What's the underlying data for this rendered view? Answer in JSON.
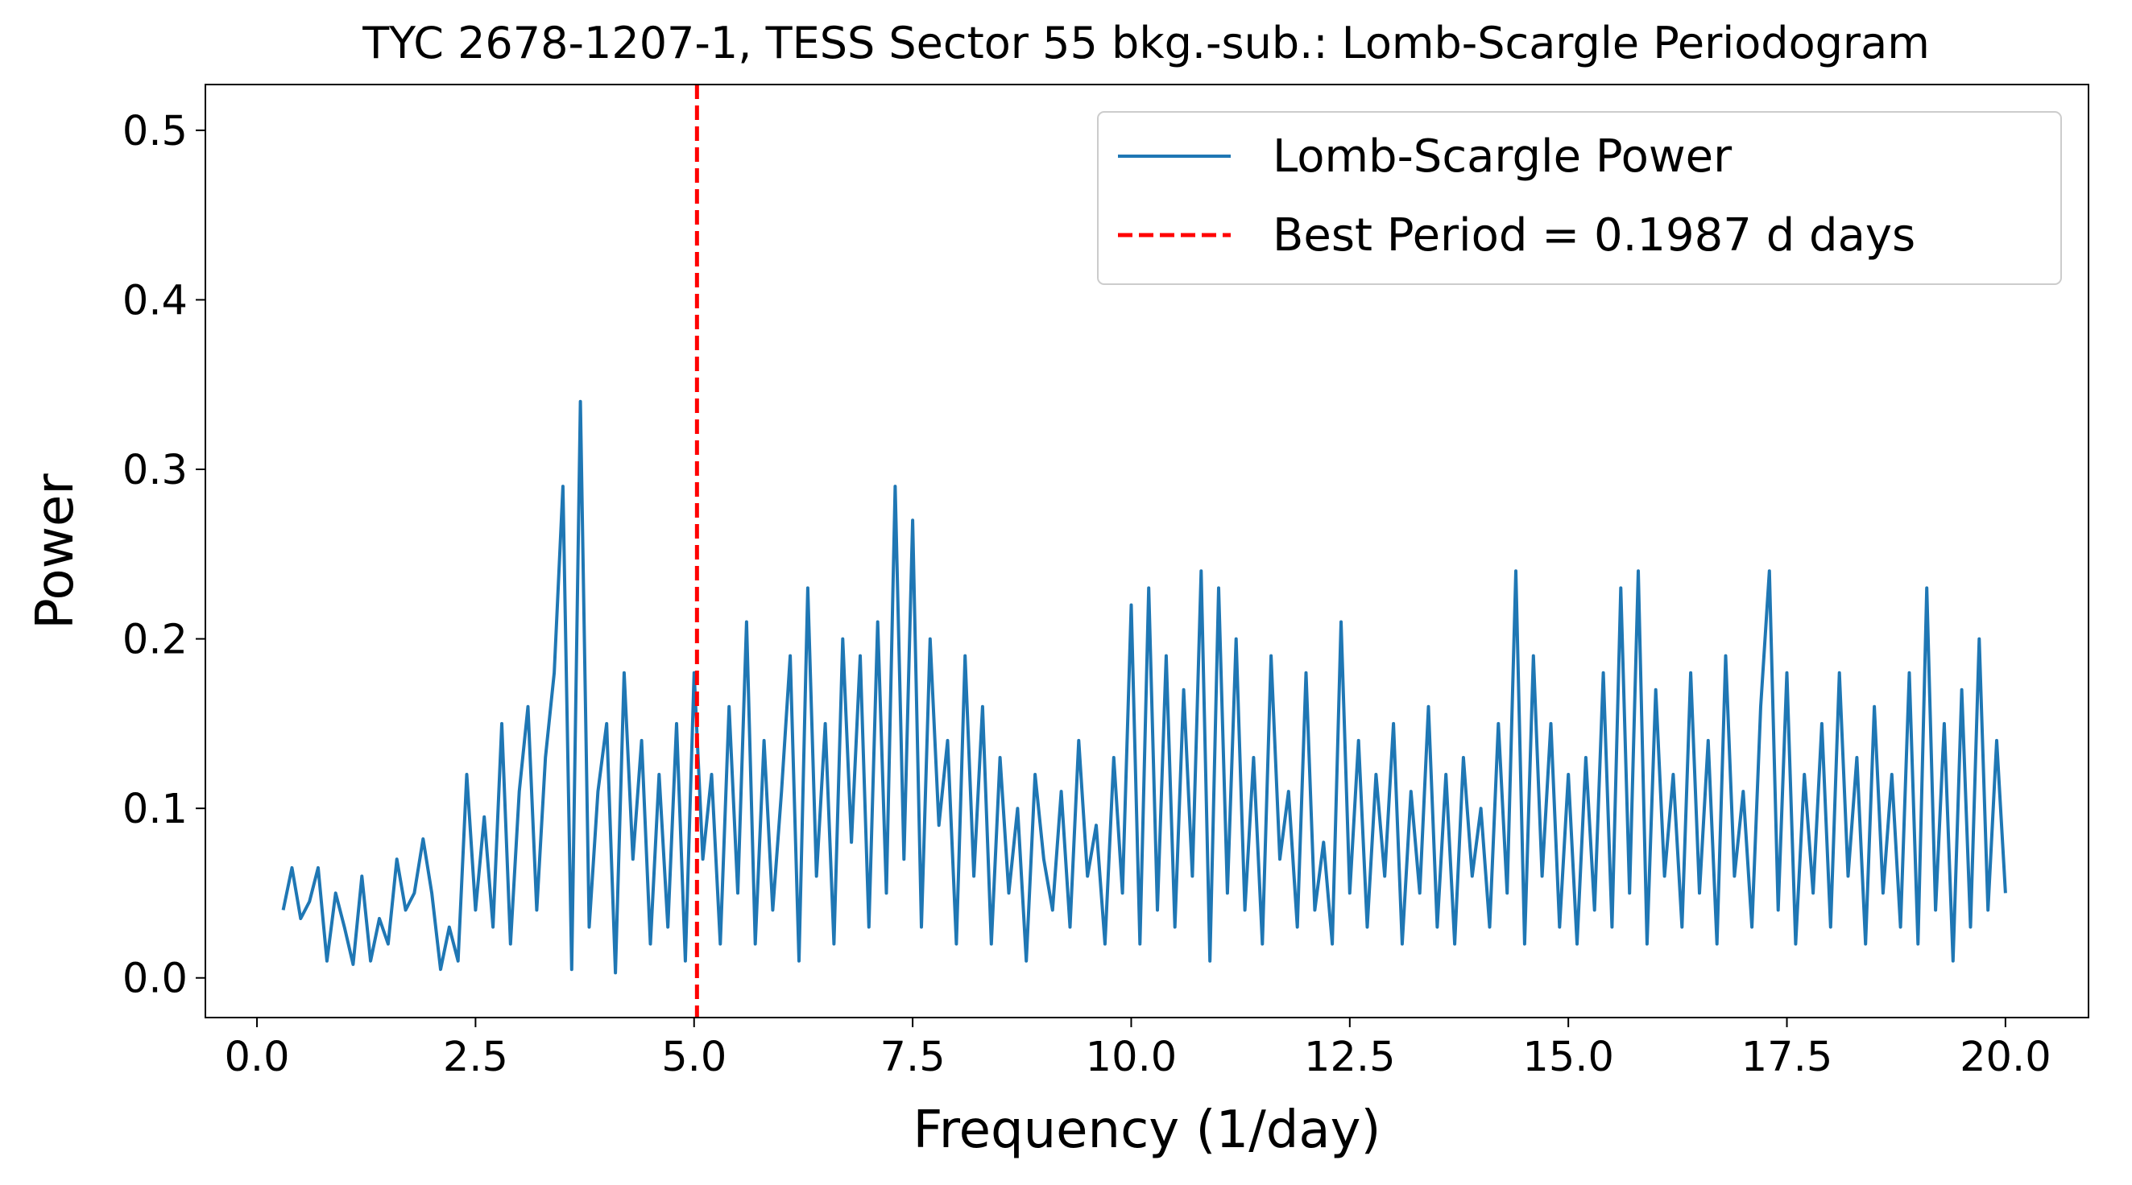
{
  "chart_data": {
    "type": "line",
    "title": "TYC 2678-1207-1, TESS Sector 55 bkg.-sub.: Lomb-Scargle Periodogram",
    "xlabel": "Frequency (1/day)",
    "ylabel": "Power",
    "xlim": [
      -0.59,
      20.95
    ],
    "ylim": [
      -0.0234,
      0.527
    ],
    "xticks": [
      {
        "value": 0,
        "label": "0.0"
      },
      2.5,
      {
        "value": 5,
        "label": "5.0"
      },
      7.5,
      {
        "value": 10,
        "label": "10.0"
      },
      12.5,
      {
        "value": 15,
        "label": "15.0"
      },
      17.5,
      {
        "value": 20,
        "label": "20.0"
      }
    ],
    "yticks": [
      {
        "value": 0,
        "label": "0.0"
      },
      0.1,
      0.2,
      0.3,
      0.4,
      0.5
    ],
    "legend": "upper right",
    "x": [
      0.3,
      0.4,
      0.5,
      0.6,
      0.7,
      0.8,
      0.9,
      1.0,
      1.1,
      1.2,
      1.3,
      1.4,
      1.5,
      1.6,
      1.7,
      1.8,
      1.9,
      2.0,
      2.1,
      2.2,
      2.3,
      2.4,
      2.5,
      2.6,
      2.7,
      2.8,
      2.9,
      3.0,
      3.1,
      3.2,
      3.3,
      3.4,
      3.5,
      3.6,
      3.7,
      3.8,
      3.9,
      4.0,
      4.1,
      4.2,
      4.3,
      4.4,
      4.5,
      4.6,
      4.7,
      4.8,
      4.9,
      5.0,
      5.1,
      5.2,
      5.3,
      5.4,
      5.5,
      5.6,
      5.7,
      5.8,
      5.9,
      6.0,
      6.1,
      6.2,
      6.3,
      6.4,
      6.5,
      6.6,
      6.7,
      6.8,
      6.9,
      7.0,
      7.1,
      7.2,
      7.3,
      7.4,
      7.5,
      7.6,
      7.7,
      7.8,
      7.9,
      8.0,
      8.1,
      8.2,
      8.3,
      8.4,
      8.5,
      8.6,
      8.7,
      8.8,
      8.9,
      9.0,
      9.1,
      9.2,
      9.3,
      9.4,
      9.5,
      9.6,
      9.7,
      9.8,
      9.9,
      10.0,
      10.1,
      10.2,
      10.3,
      10.4,
      10.5,
      10.6,
      10.7,
      10.8,
      10.9,
      11.0,
      11.1,
      11.2,
      11.3,
      11.4,
      11.5,
      11.6,
      11.7,
      11.8,
      11.9,
      12.0,
      12.1,
      12.2,
      12.3,
      12.4,
      12.5,
      12.6,
      12.7,
      12.8,
      12.9,
      13.0,
      13.1,
      13.2,
      13.3,
      13.4,
      13.5,
      13.6,
      13.7,
      13.8,
      13.9,
      14.0,
      14.1,
      14.2,
      14.3,
      14.4,
      14.5,
      14.6,
      14.7,
      14.8,
      14.9,
      15.0,
      15.1,
      15.2,
      15.3,
      15.4,
      15.5,
      15.6,
      15.7,
      15.8,
      15.9,
      16.0,
      16.1,
      16.2,
      16.3,
      16.4,
      16.5,
      16.6,
      16.7,
      16.8,
      16.9,
      17.0,
      17.1,
      17.2,
      17.3,
      17.4,
      17.5,
      17.6,
      17.7,
      17.8,
      17.9,
      18.0,
      18.1,
      18.2,
      18.3,
      18.4,
      18.5,
      18.6,
      18.7,
      18.8,
      18.9,
      19.0,
      19.1,
      19.2,
      19.3,
      19.4,
      19.5,
      19.6,
      19.7,
      19.8,
      19.9,
      20.0
    ],
    "series": [
      {
        "name": "Lomb-Scargle Power",
        "color": "#1f77b4",
        "values": [
          0.04,
          0.065,
          0.035,
          0.045,
          0.065,
          0.01,
          0.05,
          0.03,
          0.008,
          0.06,
          0.01,
          0.035,
          0.02,
          0.07,
          0.04,
          0.05,
          0.082,
          0.05,
          0.005,
          0.03,
          0.01,
          0.12,
          0.04,
          0.095,
          0.03,
          0.15,
          0.02,
          0.11,
          0.16,
          0.04,
          0.13,
          0.18,
          0.29,
          0.005,
          0.34,
          0.03,
          0.11,
          0.15,
          0.003,
          0.18,
          0.07,
          0.14,
          0.02,
          0.12,
          0.03,
          0.15,
          0.01,
          0.18,
          0.07,
          0.12,
          0.02,
          0.16,
          0.05,
          0.21,
          0.02,
          0.14,
          0.04,
          0.11,
          0.19,
          0.01,
          0.23,
          0.06,
          0.15,
          0.02,
          0.2,
          0.08,
          0.19,
          0.03,
          0.21,
          0.05,
          0.29,
          0.07,
          0.27,
          0.03,
          0.2,
          0.09,
          0.14,
          0.02,
          0.19,
          0.06,
          0.16,
          0.02,
          0.13,
          0.05,
          0.1,
          0.01,
          0.12,
          0.07,
          0.04,
          0.11,
          0.03,
          0.14,
          0.06,
          0.09,
          0.02,
          0.13,
          0.05,
          0.22,
          0.02,
          0.23,
          0.04,
          0.19,
          0.03,
          0.17,
          0.06,
          0.24,
          0.01,
          0.23,
          0.05,
          0.2,
          0.04,
          0.13,
          0.02,
          0.19,
          0.07,
          0.11,
          0.03,
          0.18,
          0.04,
          0.08,
          0.02,
          0.21,
          0.05,
          0.14,
          0.03,
          0.12,
          0.06,
          0.15,
          0.02,
          0.11,
          0.05,
          0.16,
          0.03,
          0.12,
          0.02,
          0.13,
          0.06,
          0.1,
          0.03,
          0.15,
          0.05,
          0.24,
          0.02,
          0.19,
          0.06,
          0.15,
          0.03,
          0.12,
          0.02,
          0.13,
          0.04,
          0.18,
          0.03,
          0.23,
          0.05,
          0.24,
          0.02,
          0.17,
          0.06,
          0.12,
          0.03,
          0.18,
          0.05,
          0.14,
          0.02,
          0.19,
          0.06,
          0.11,
          0.03,
          0.16,
          0.24,
          0.04,
          0.18,
          0.02,
          0.12,
          0.05,
          0.15,
          0.03,
          0.18,
          0.06,
          0.13,
          0.02,
          0.16,
          0.05,
          0.12,
          0.03,
          0.18,
          0.02,
          0.23,
          0.04,
          0.15,
          0.01,
          0.17,
          0.03,
          0.2,
          0.04,
          0.14,
          0.05
        ]
      }
    ],
    "vline": {
      "x": 5.033,
      "label": "Best Period = 0.1987 d days",
      "color": "#ff0000"
    }
  }
}
